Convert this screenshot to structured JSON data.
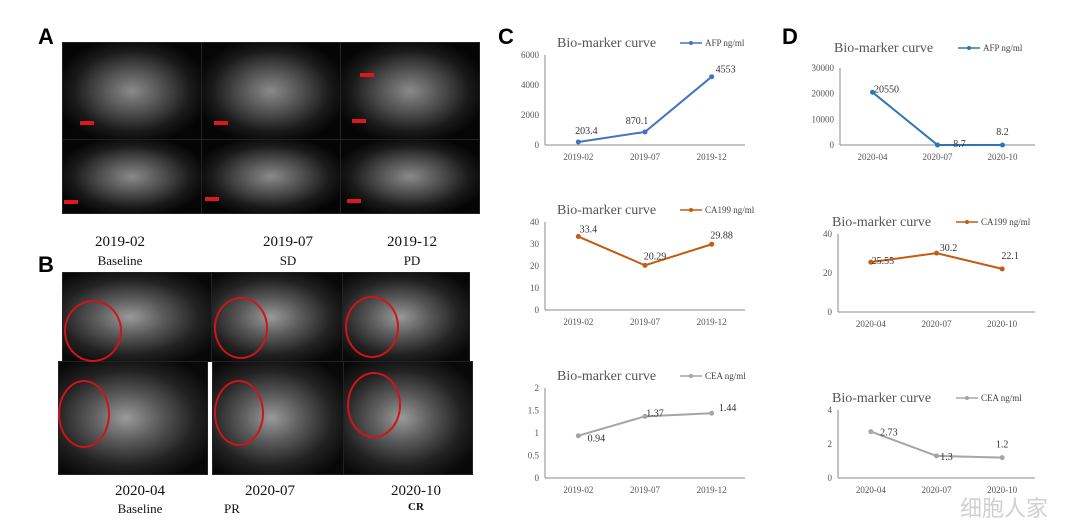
{
  "panels": {
    "a": "A",
    "b": "B",
    "c": "C",
    "d": "D"
  },
  "panel_a_captions": [
    {
      "date": "2019-02",
      "status": "Baseline"
    },
    {
      "date": "2019-07",
      "status": "SD"
    },
    {
      "date": "2019-12",
      "status": "PD"
    }
  ],
  "panel_b_captions": [
    {
      "date": "2020-04",
      "status": "Baseline"
    },
    {
      "date": "2020-07",
      "status": "PR"
    },
    {
      "date": "2020-10",
      "status": "CR"
    }
  ],
  "watermark": "细胞人家",
  "chart_data": [
    {
      "id": "c1",
      "type": "line",
      "title": "Bio-marker curve",
      "categories": [
        "2019-02",
        "2019-07",
        "2019-12"
      ],
      "series": [
        {
          "name": "AFP ng/ml",
          "values": [
            203.4,
            870.1,
            4553
          ],
          "labels": [
            "203.4",
            "870.1",
            "4553"
          ],
          "color": "#4472c4"
        }
      ],
      "ylim": [
        0,
        6000
      ],
      "yticks": [
        0,
        2000,
        4000,
        6000
      ],
      "grid": false,
      "legend": "top-right"
    },
    {
      "id": "c2",
      "type": "line",
      "title": "Bio-marker curve",
      "categories": [
        "2019-02",
        "2019-07",
        "2019-12"
      ],
      "series": [
        {
          "name": "CA199 ng/ml",
          "values": [
            33.4,
            20.29,
            29.88
          ],
          "labels": [
            "33.4",
            "20.29",
            "29.88"
          ],
          "color": "#c55a11"
        }
      ],
      "ylim": [
        0,
        40
      ],
      "yticks": [
        0,
        10,
        20,
        30,
        40
      ],
      "grid": false,
      "legend": "top-right"
    },
    {
      "id": "c3",
      "type": "line",
      "title": "Bio-marker curve",
      "categories": [
        "2019-02",
        "2019-07",
        "2019-12"
      ],
      "series": [
        {
          "name": "CEA ng/ml",
          "values": [
            0.94,
            1.37,
            1.44
          ],
          "labels": [
            "0.94",
            "1.37",
            "1.44"
          ],
          "color": "#a5a5a5"
        }
      ],
      "ylim": [
        0,
        2
      ],
      "yticks": [
        0,
        0.5,
        1,
        1.5,
        2
      ],
      "grid": false,
      "legend": "top-right"
    },
    {
      "id": "d1",
      "type": "line",
      "title": "Bio-marker curve",
      "categories": [
        "2020-04",
        "2020-07",
        "2020-10"
      ],
      "series": [
        {
          "name": "AFP ng/ml",
          "values": [
            20550,
            8.7,
            8.2
          ],
          "labels": [
            "20550",
            "8.7",
            "8.2"
          ],
          "color": "#2e75b6"
        }
      ],
      "ylim": [
        0,
        30000
      ],
      "yticks": [
        0,
        10000,
        20000,
        30000
      ],
      "grid": false,
      "legend": "top-right"
    },
    {
      "id": "d2",
      "type": "line",
      "title": "Bio-marker curve",
      "categories": [
        "2020-04",
        "2020-07",
        "2020-10"
      ],
      "series": [
        {
          "name": "CA199 ng/ml",
          "values": [
            25.55,
            30.2,
            22.1
          ],
          "labels": [
            "25.55",
            "30.2",
            "22.1"
          ],
          "color": "#c55a11"
        }
      ],
      "ylim": [
        0,
        40
      ],
      "yticks": [
        0,
        20,
        40
      ],
      "grid": false,
      "legend": "top-right"
    },
    {
      "id": "d3",
      "type": "line",
      "title": "Bio-marker curve",
      "categories": [
        "2020-04",
        "2020-07",
        "2020-10"
      ],
      "series": [
        {
          "name": "CEA ng/ml",
          "values": [
            2.73,
            1.3,
            1.2
          ],
          "labels": [
            "2.73",
            "1.3",
            "1.2"
          ],
          "color": "#a5a5a5"
        }
      ],
      "ylim": [
        0,
        4
      ],
      "yticks": [
        0,
        2,
        4
      ],
      "grid": false,
      "legend": "top-right"
    }
  ]
}
